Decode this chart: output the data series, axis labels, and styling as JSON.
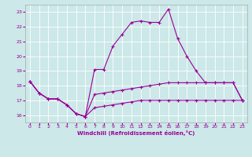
{
  "xlabel": "Windchill (Refroidissement éolien,°C)",
  "bg_color": "#cce8e8",
  "line_color": "#990099",
  "grid_color": "#ffffff",
  "xlim": [
    -0.5,
    23.5
  ],
  "ylim": [
    15.5,
    23.5
  ],
  "yticks": [
    16,
    17,
    18,
    19,
    20,
    21,
    22,
    23
  ],
  "xticks": [
    0,
    1,
    2,
    3,
    4,
    5,
    6,
    7,
    8,
    9,
    10,
    11,
    12,
    13,
    14,
    15,
    16,
    17,
    18,
    19,
    20,
    21,
    22,
    23
  ],
  "line1_x": [
    0,
    1,
    2,
    3,
    4,
    5,
    6,
    7,
    8,
    9,
    10,
    11,
    12,
    13,
    14,
    15,
    16,
    17,
    18,
    19,
    20,
    21,
    22,
    23
  ],
  "line1_y": [
    18.3,
    17.5,
    17.1,
    17.1,
    16.7,
    16.1,
    15.9,
    19.1,
    19.1,
    20.7,
    21.5,
    22.3,
    22.4,
    22.3,
    22.3,
    23.2,
    21.2,
    20.0,
    19.0,
    18.2,
    18.2,
    18.2,
    18.2,
    17.0
  ],
  "line2_x": [
    0,
    1,
    2,
    3,
    4,
    5,
    6,
    7,
    8,
    9,
    10,
    11,
    12,
    13,
    14,
    15,
    16,
    17,
    18,
    19,
    20,
    21,
    22,
    23
  ],
  "line2_y": [
    18.3,
    17.5,
    17.1,
    17.1,
    16.7,
    16.1,
    15.9,
    17.4,
    17.5,
    17.6,
    17.7,
    17.8,
    17.9,
    18.0,
    18.1,
    18.2,
    18.2,
    18.2,
    18.2,
    18.2,
    18.2,
    18.2,
    18.2,
    17.0
  ],
  "line3_x": [
    0,
    1,
    2,
    3,
    4,
    5,
    6,
    7,
    8,
    9,
    10,
    11,
    12,
    13,
    14,
    15,
    16,
    17,
    18,
    19,
    20,
    21,
    22,
    23
  ],
  "line3_y": [
    18.3,
    17.5,
    17.1,
    17.1,
    16.7,
    16.1,
    15.9,
    16.5,
    16.6,
    16.7,
    16.8,
    16.9,
    17.0,
    17.0,
    17.0,
    17.0,
    17.0,
    17.0,
    17.0,
    17.0,
    17.0,
    17.0,
    17.0,
    17.0
  ]
}
